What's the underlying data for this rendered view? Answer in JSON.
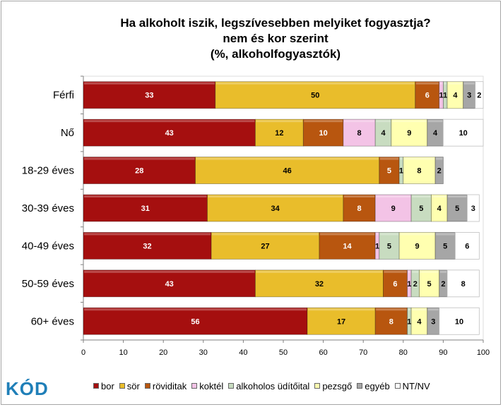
{
  "logo": "KÓD",
  "colors": {
    "bor": "#a50f0f",
    "sor": "#e9bd2b",
    "roviditals": "#b8560f",
    "koktel": "#f3c3e6",
    "alkoholos_uditoital": "#c8dcc0",
    "pezsgo": "#ffffb0",
    "egyeb": "#a6a6a6",
    "ntnv": "#ffffff"
  },
  "chart_data": {
    "type": "bar",
    "orientation": "horizontal",
    "stacked": true,
    "title_lines": [
      "Ha alkoholt iszik, legszívesebben melyiket fogyasztja?",
      "nem és kor szerint",
      "(%, alkoholfogyasztók)"
    ],
    "categories": [
      "Férfi",
      "Nő",
      "18-29 éves",
      "30-39 éves",
      "40-49 éves",
      "50-59 éves",
      "60+ éves"
    ],
    "xlim": [
      0,
      100
    ],
    "x_ticks": [
      "0",
      "10",
      "20",
      "30",
      "40",
      "50",
      "60",
      "70",
      "80",
      "90",
      "100"
    ],
    "legend_position": "bottom",
    "series": [
      {
        "name": "bor",
        "values": [
          33,
          43,
          28,
          31,
          32,
          43,
          56
        ]
      },
      {
        "name": "sör",
        "values": [
          50,
          12,
          46,
          34,
          27,
          32,
          17
        ]
      },
      {
        "name": "röviditak",
        "values": [
          6,
          10,
          5,
          8,
          14,
          6,
          8
        ]
      },
      {
        "name": "koktél",
        "values": [
          1,
          8,
          0,
          9,
          1,
          1,
          0
        ]
      },
      {
        "name": "alkoholos üdítőital",
        "values": [
          1,
          4,
          1,
          5,
          5,
          2,
          1
        ]
      },
      {
        "name": "pezsgő",
        "values": [
          4,
          9,
          8,
          4,
          9,
          5,
          4
        ]
      },
      {
        "name": "egyéb",
        "values": [
          3,
          4,
          2,
          5,
          5,
          2,
          3
        ]
      },
      {
        "name": "NT/NV",
        "values": [
          2,
          10,
          0,
          3,
          6,
          8,
          10
        ]
      }
    ]
  },
  "legend_labels": [
    "bor",
    "sör",
    "röviditak",
    "koktél",
    "alkoholos üdítőital",
    "pezsgő",
    "egyéb",
    "NT/NV"
  ]
}
